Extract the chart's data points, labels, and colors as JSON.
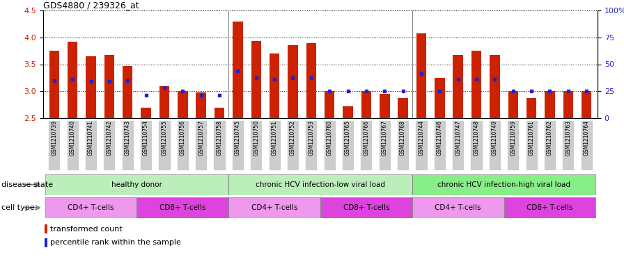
{
  "title": "GDS4880 / 239326_at",
  "samples": [
    "GSM1210739",
    "GSM1210740",
    "GSM1210741",
    "GSM1210742",
    "GSM1210743",
    "GSM1210754",
    "GSM1210755",
    "GSM1210756",
    "GSM1210757",
    "GSM1210758",
    "GSM1210745",
    "GSM1210750",
    "GSM1210751",
    "GSM1210752",
    "GSM1210753",
    "GSM1210760",
    "GSM1210765",
    "GSM1210766",
    "GSM1210767",
    "GSM1210768",
    "GSM1210744",
    "GSM1210746",
    "GSM1210747",
    "GSM1210748",
    "GSM1210749",
    "GSM1210759",
    "GSM1210761",
    "GSM1210762",
    "GSM1210763",
    "GSM1210764"
  ],
  "red_values": [
    3.75,
    3.92,
    3.65,
    3.68,
    3.47,
    2.7,
    3.1,
    3.0,
    2.98,
    2.7,
    4.3,
    3.93,
    3.7,
    3.85,
    3.9,
    3.0,
    2.72,
    3.0,
    2.95,
    2.88,
    4.08,
    3.25,
    3.67,
    3.75,
    3.67,
    3.0,
    2.88,
    3.0,
    3.0,
    3.0
  ],
  "blue_percentile": [
    3.2,
    3.22,
    3.18,
    3.18,
    3.2,
    2.92,
    3.07,
    3.0,
    2.92,
    2.92,
    3.38,
    3.25,
    3.22,
    3.25,
    3.25,
    3.0,
    3.0,
    3.0,
    3.0,
    3.0,
    3.33,
    3.0,
    3.22,
    3.22,
    3.22,
    3.0,
    3.0,
    3.0,
    3.0,
    3.0
  ],
  "ylim_left": [
    2.5,
    4.5
  ],
  "ylim_right": [
    0,
    100
  ],
  "yticks_left": [
    2.5,
    3.0,
    3.5,
    4.0,
    4.5
  ],
  "yticks_right": [
    0,
    25,
    50,
    75,
    100
  ],
  "ytick_right_labels": [
    "0",
    "25",
    "50",
    "75",
    "100%"
  ],
  "bar_color": "#cc2200",
  "blue_color": "#2222cc",
  "tick_bg_color": "#cccccc",
  "disease_groups": [
    {
      "label": "healthy donor",
      "start": 0,
      "end": 9,
      "color": "#bbeebb"
    },
    {
      "label": "chronic HCV infection-low viral load",
      "start": 10,
      "end": 19,
      "color": "#bbeebb"
    },
    {
      "label": "chronic HCV infection-high viral load",
      "start": 20,
      "end": 29,
      "color": "#88ee88"
    }
  ],
  "cell_groups": [
    {
      "label": "CD4+ T-cells",
      "start": 0,
      "end": 4,
      "color": "#ee99ee"
    },
    {
      "label": "CD8+ T-cells",
      "start": 5,
      "end": 9,
      "color": "#dd55dd"
    },
    {
      "label": "CD4+ T-cells",
      "start": 10,
      "end": 14,
      "color": "#ee99ee"
    },
    {
      "label": "CD8+ T-cells",
      "start": 15,
      "end": 19,
      "color": "#dd55dd"
    },
    {
      "label": "CD4+ T-cells",
      "start": 20,
      "end": 24,
      "color": "#ee99ee"
    },
    {
      "label": "CD8+ T-cells",
      "start": 25,
      "end": 29,
      "color": "#dd55dd"
    }
  ],
  "disease_state_label": "disease state",
  "cell_type_label": "cell type",
  "legend_red": "transformed count",
  "legend_blue": "percentile rank within the sample",
  "bar_width": 0.55
}
